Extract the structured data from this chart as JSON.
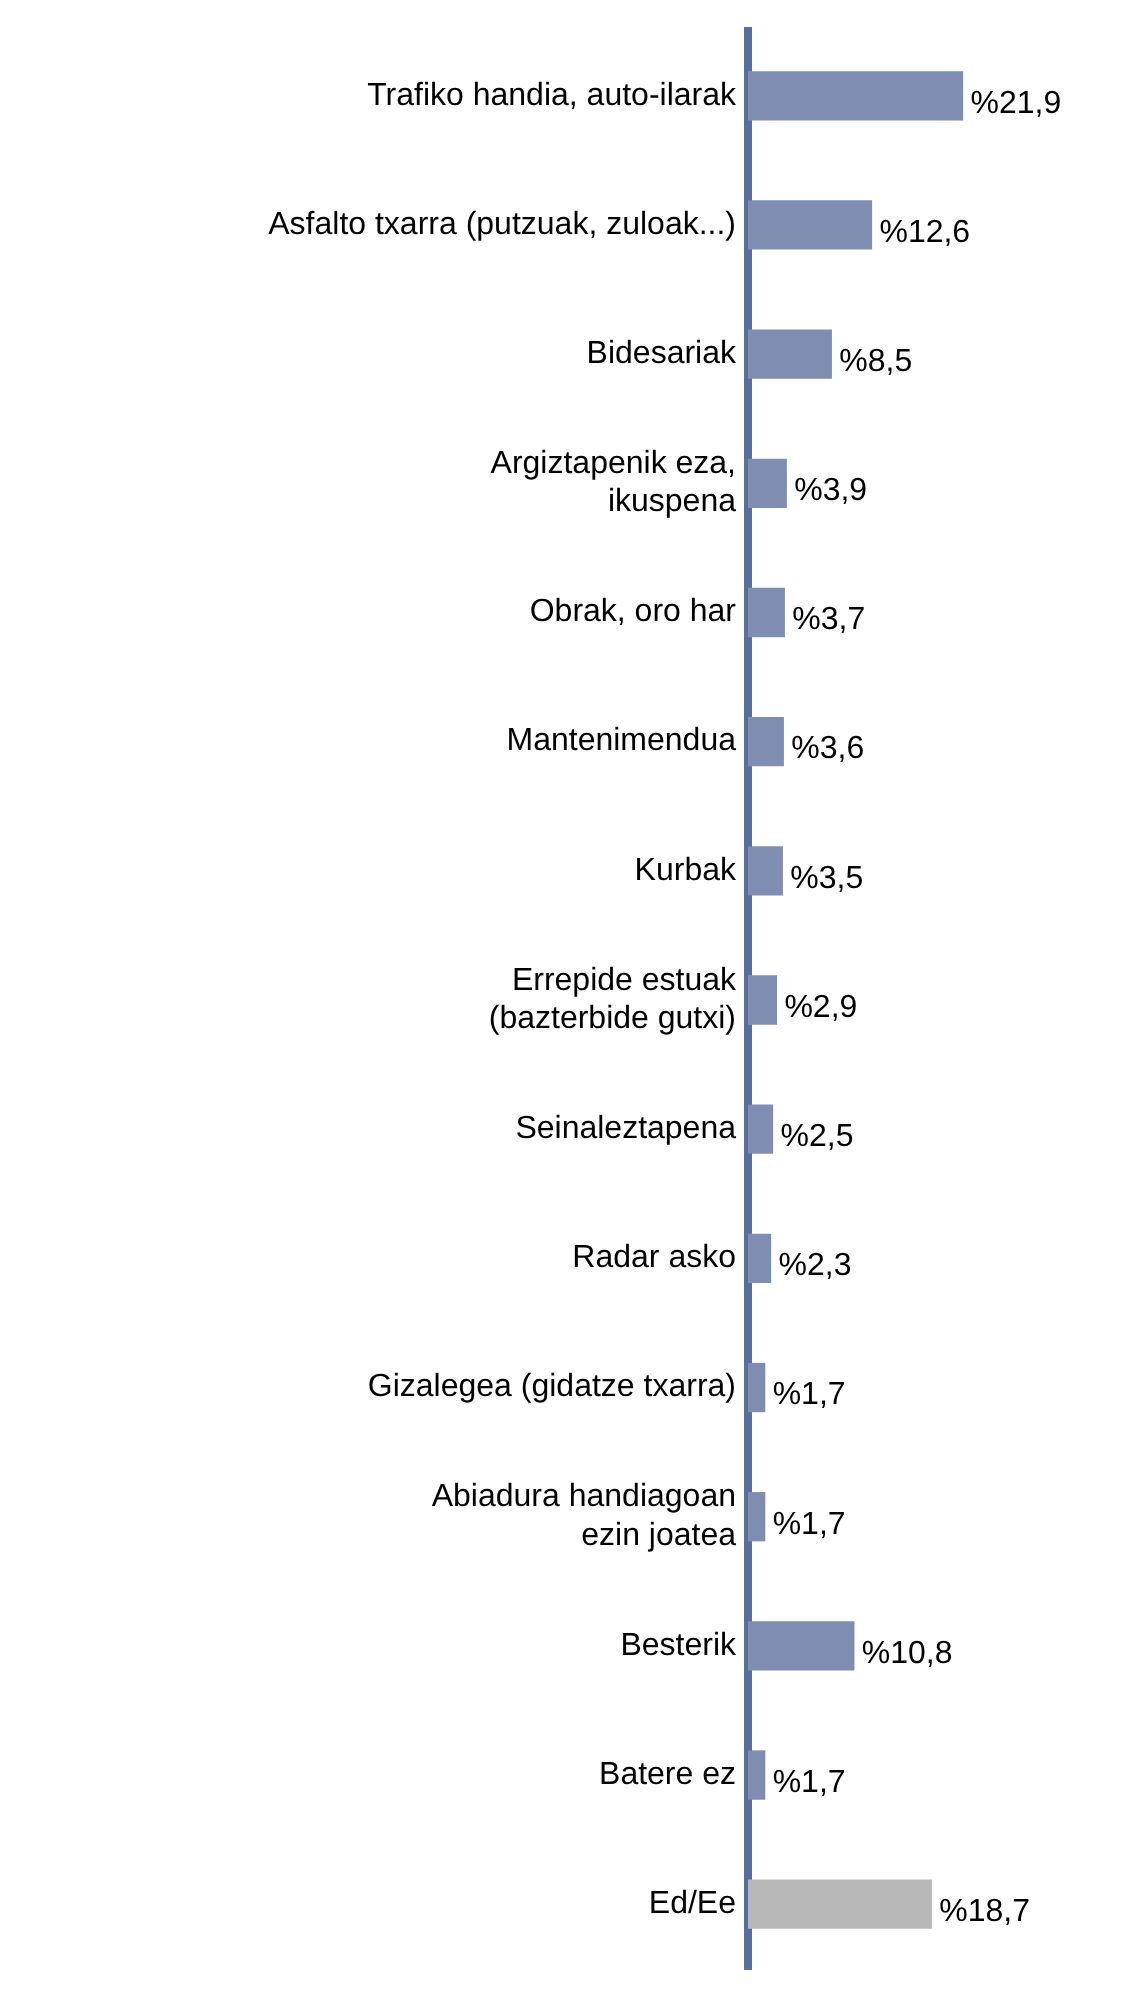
{
  "chart_data": {
    "type": "bar",
    "orientation": "horizontal",
    "tick_labels": "y",
    "categories": [
      "Trafiko handia, auto-ilarak",
      "Asfalto txarra (putzuak, zuloak...)",
      "Bidesariak",
      "Argiztapenik eza,\nikuspena",
      "Obrak, oro har",
      "Mantenimendua",
      "Kurbak",
      "Errepide estuak\n(bazterbide gutxi)",
      "Seinaleztapena",
      "Radar asko",
      "Gizalegea (gidatze txarra)",
      "Abiadura handiagoan\nezin joatea",
      "Besterik",
      "Batere ez",
      "Ed/Ee"
    ],
    "values": [
      21.9,
      12.6,
      8.5,
      3.9,
      3.7,
      3.6,
      3.5,
      2.9,
      2.5,
      2.3,
      1.7,
      1.7,
      10.8,
      1.7,
      18.7
    ],
    "value_labels": [
      "%21,9",
      "%12,6",
      "%8,5",
      "%3,9",
      "%3,7",
      "%3,6",
      "%3,5",
      "%2,9",
      "%2,5",
      "%2,3",
      "%1,7",
      "%1,7",
      "%10,8",
      "%1,7",
      "%18,7"
    ],
    "colors": [
      "#7f8db0",
      "#7f8db0",
      "#7f8db0",
      "#7f8db0",
      "#7f8db0",
      "#7f8db0",
      "#7f8db0",
      "#7f8db0",
      "#7f8db0",
      "#7f8db0",
      "#7f8db0",
      "#7f8db0",
      "#7f8db0",
      "#7f8db0",
      "#b8b8b8"
    ],
    "grid": false,
    "legend": false
  }
}
